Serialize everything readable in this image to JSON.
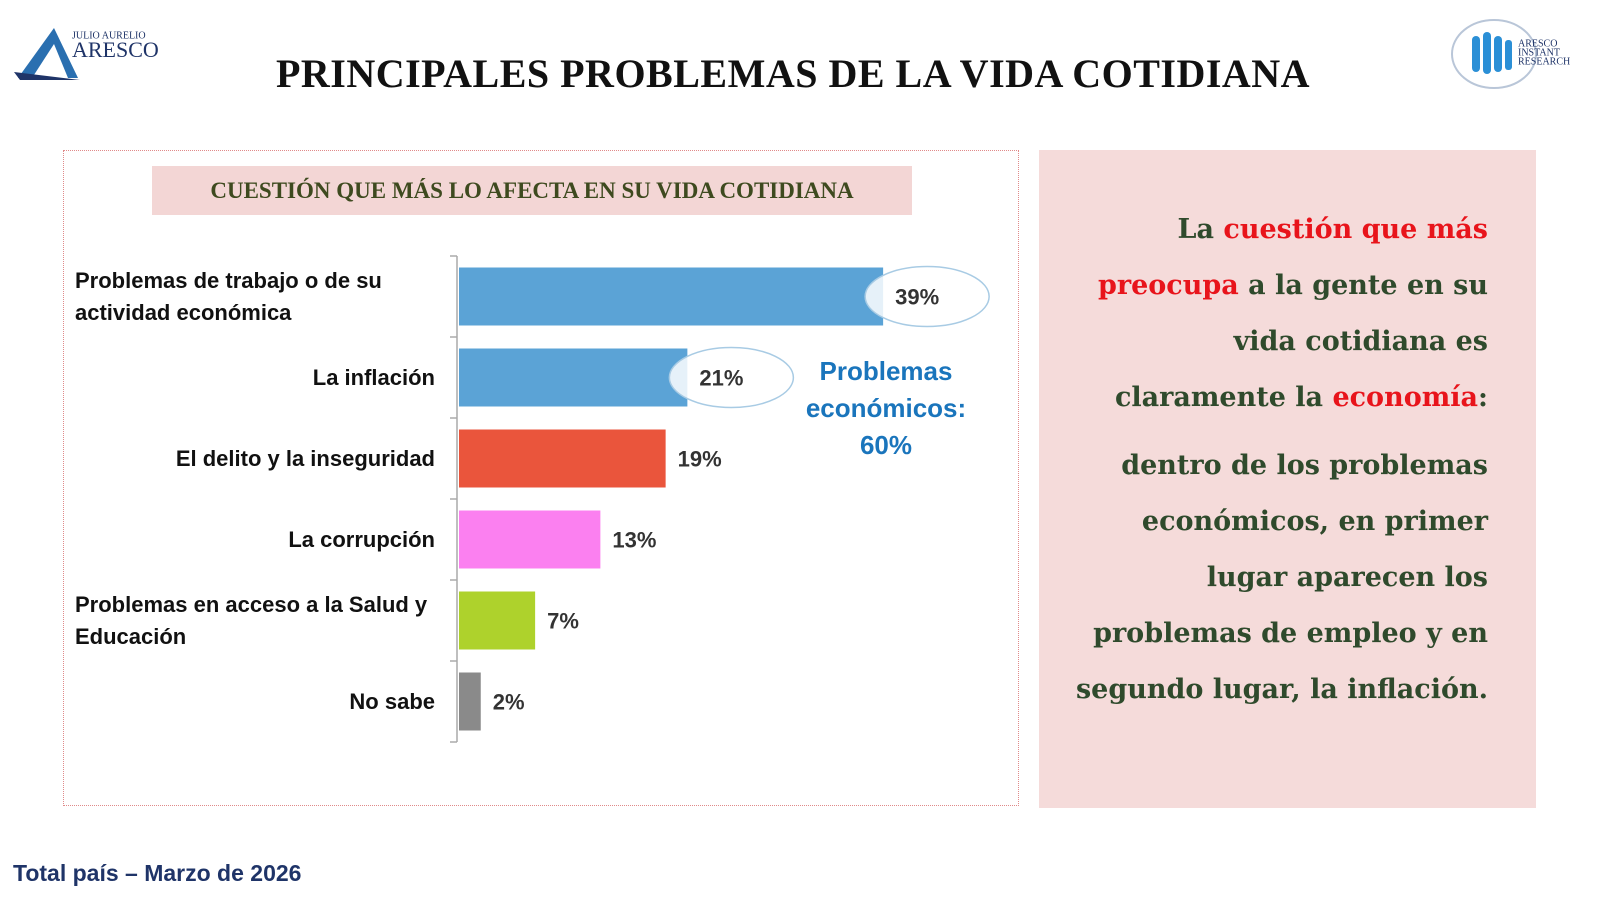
{
  "header": {
    "title": "PRINCIPALES PROBLEMAS DE LA VIDA COTIDIANA",
    "logo_left": {
      "small": "JULIO AURELIO",
      "big": "ARESCO"
    },
    "logo_right": [
      "ARESCO",
      "INSTANT",
      "RESEARCH"
    ]
  },
  "chart_data": {
    "type": "bar",
    "orientation": "horizontal",
    "title": "CUESTIÓN QUE MÁS LO AFECTA EN SU VIDA COTIDIANA",
    "categories": [
      "Problemas de trabajo o de su actividad económica",
      "La inflación",
      "El delito y la inseguridad",
      "La corrupción",
      "Problemas en acceso a la Salud y Educación",
      "No sabe"
    ],
    "values": [
      39,
      21,
      19,
      13,
      7,
      2
    ],
    "value_labels": [
      "39%",
      "21%",
      "19%",
      "13%",
      "7%",
      "2%"
    ],
    "colors": [
      "#5ba3d6",
      "#5ba3d6",
      "#ea553c",
      "#fb80f0",
      "#aed22c",
      "#8a8a8a"
    ],
    "circled": [
      true,
      true,
      false,
      false,
      false,
      false
    ],
    "xlim": [
      0,
      40
    ],
    "annotation": [
      "Problemas",
      "económicos:",
      "60%"
    ]
  },
  "text_panel": {
    "paragraphs": [
      [
        {
          "text": "La "
        },
        {
          "text": "cuestión que más preocupa",
          "emphasis": true
        },
        {
          "text": " a la gente en su vida cotidiana es claramente la "
        },
        {
          "text": "economía",
          "emphasis": true
        },
        {
          "text": ":"
        }
      ],
      [
        {
          "text": "dentro de los problemas económicos, en primer lugar aparecen los problemas de empleo y en segundo lugar, la inflación."
        }
      ]
    ]
  },
  "footer": "Total país – Marzo de 2026"
}
